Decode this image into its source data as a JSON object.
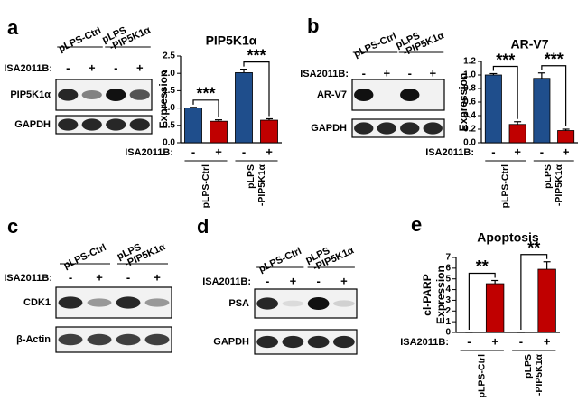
{
  "chart_data": [
    {
      "type": "bar",
      "title": "PIP5K1α",
      "y_label": [
        "Expression"
      ],
      "x_label": "ISA2011B:",
      "categories": [
        "-",
        "+",
        "-",
        "+"
      ],
      "groups": [
        [
          "pLPS-Ctrl"
        ],
        [
          "pLPS",
          "-PIP5K1α"
        ]
      ],
      "values": [
        1.0,
        0.62,
        2.02,
        0.65
      ],
      "errors": [
        0.02,
        0.04,
        0.1,
        0.04
      ],
      "colors": [
        "#1f4e8c",
        "#c00000",
        "#1f4e8c",
        "#c00000"
      ],
      "significance": [
        "***",
        "***"
      ],
      "ylim": [
        0,
        2.5
      ],
      "yticks": [
        {
          "value": 0,
          "label": "0.0"
        },
        0.5,
        {
          "value": 1,
          "label": "1.0"
        },
        1.5,
        {
          "value": 2,
          "label": "2.0"
        },
        2.5
      ]
    },
    {
      "type": "bar",
      "title": "AR-V7",
      "y_label": [
        "Expression"
      ],
      "x_label": "ISA2011B:",
      "categories": [
        "-",
        "+",
        "-",
        "+"
      ],
      "groups": [
        [
          "pLPS-Ctrl"
        ],
        [
          "pLPS",
          "-PIP5K1α"
        ]
      ],
      "values": [
        1.0,
        0.27,
        0.95,
        0.18
      ],
      "errors": [
        0.02,
        0.04,
        0.08,
        0.02
      ],
      "colors": [
        "#1f4e8c",
        "#c00000",
        "#1f4e8c",
        "#c00000"
      ],
      "significance": [
        "***",
        "***"
      ],
      "ylim": [
        0,
        1.2
      ],
      "yticks": [
        {
          "value": 0,
          "label": "0.0"
        },
        0.2,
        0.4,
        0.6,
        0.8,
        {
          "value": 1,
          "label": "1.0"
        },
        1.2
      ]
    },
    {
      "type": "bar",
      "letter": "e",
      "title": "Apoptosis",
      "y_label": [
        "cl-PARP",
        "Expression"
      ],
      "x_label": "ISA2011B:",
      "categories": [
        "-",
        "+",
        "-",
        "+"
      ],
      "groups": [
        [
          "pLPS-Ctrl"
        ],
        [
          "pLPS",
          "-PIP5K1α"
        ]
      ],
      "values": [
        0,
        4.55,
        0,
        5.9
      ],
      "errors": [
        0,
        0.3,
        0,
        0.7
      ],
      "colors": [
        "#c00000",
        "#c00000",
        "#c00000",
        "#c00000"
      ],
      "significance": [
        "**",
        "**"
      ],
      "ylim": [
        0,
        7
      ],
      "yticks": [
        0,
        1,
        2,
        3,
        4,
        5,
        6,
        7
      ]
    }
  ],
  "blots": [
    {
      "letter": "a",
      "groups": [
        [
          "pLPS-Ctrl"
        ],
        [
          "pLPS",
          "-PIP5K1α"
        ]
      ],
      "treatment_label": "ISA2011B:",
      "treatment": [
        "-",
        "+",
        "-",
        "+"
      ],
      "rows": [
        "PIP5K1α",
        "GAPDH"
      ]
    },
    {
      "letter": "b",
      "groups": [
        [
          "pLPS-Ctrl"
        ],
        [
          "pLPS",
          "-PIP5K1α"
        ]
      ],
      "treatment_label": "ISA2011B:",
      "treatment": [
        "-",
        "+",
        "-",
        "+"
      ],
      "rows": [
        "AR-V7",
        "GAPDH"
      ]
    },
    {
      "letter": "c",
      "groups": [
        [
          "pLPS-Ctrl"
        ],
        [
          "pLPS",
          "-PIP5K1α"
        ]
      ],
      "treatment_label": "ISA2011B:",
      "treatment": [
        "-",
        "+",
        "-",
        "+"
      ],
      "rows": [
        "CDK1",
        "β-Actin"
      ]
    },
    {
      "letter": "d",
      "groups": [
        [
          "pLPS-Ctrl"
        ],
        [
          "pLPS",
          "-PIP5K1α"
        ]
      ],
      "treatment_label": "ISA2011B:",
      "treatment": [
        "-",
        "+",
        "-",
        "+"
      ],
      "rows": [
        "PSA",
        "GAPDH"
      ]
    }
  ]
}
